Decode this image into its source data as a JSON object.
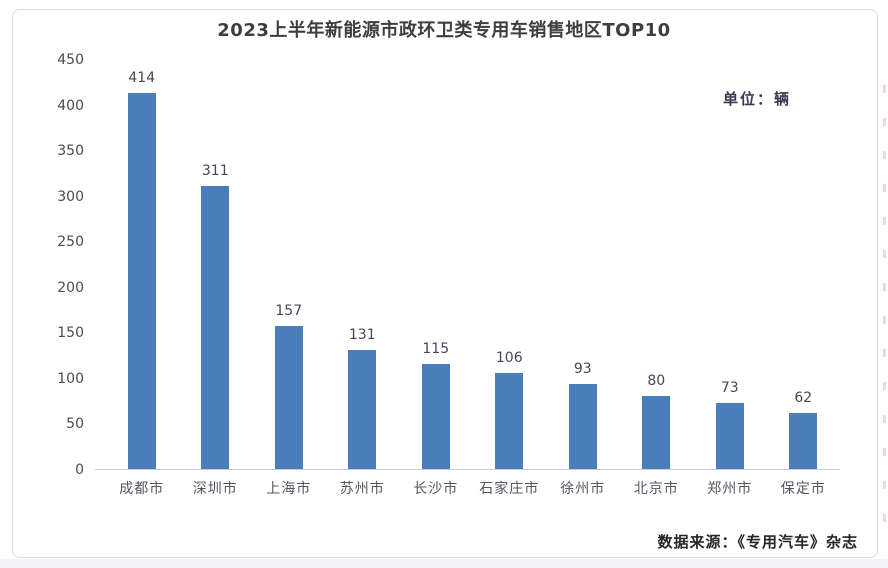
{
  "page": {
    "title": "2023上半年新能源市政环卫类专用车销售地区TOP10",
    "unit_label": "单位：辆",
    "source_label": "数据来源：《专用汽车》杂志"
  },
  "chart_data": {
    "type": "bar",
    "title": "2023上半年新能源市政环卫类专用车销售地区TOP10",
    "unit": "辆",
    "categories": [
      "成都市",
      "深圳市",
      "上海市",
      "苏州市",
      "长沙市",
      "石家庄市",
      "徐州市",
      "北京市",
      "郑州市",
      "保定市"
    ],
    "values": [
      414,
      311,
      157,
      131,
      115,
      106,
      93,
      80,
      73,
      62
    ],
    "data_labels_shown": true,
    "ylim": [
      0,
      450
    ],
    "ytick_interval": 50,
    "yticks": [
      0,
      50,
      100,
      150,
      200,
      250,
      300,
      350,
      400,
      450
    ],
    "xlabel": "",
    "ylabel": "",
    "grid": false,
    "legend": "none",
    "bar_color": "#4a7ebb",
    "source": "数据来源：《专用汽车》杂志"
  }
}
